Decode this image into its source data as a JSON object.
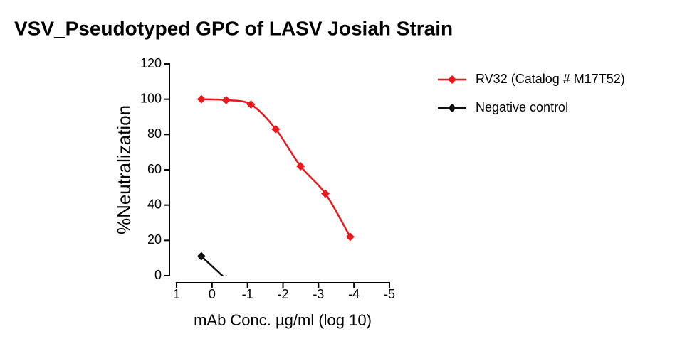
{
  "chart_data": {
    "type": "line",
    "title": "VSV_Pseudotyped GPC of LASV Josiah Strain",
    "x_label": "mAb Conc. µg/ml (log 10)",
    "y_label": "%Neutralization",
    "xlim": [
      1,
      -5
    ],
    "xticks": [
      1,
      0,
      -1,
      -2,
      -3,
      -4,
      -5
    ],
    "ylim": [
      0,
      120
    ],
    "yticks": [
      0,
      20,
      40,
      60,
      80,
      100,
      120
    ],
    "legend": "top-right",
    "series": [
      {
        "name": "RV32 (Catalog # M17T52)",
        "color": "#e8191c",
        "x": [
          0.301,
          -0.398,
          -1.097,
          -1.796,
          -2.495,
          -3.194,
          -3.893
        ],
        "values": [
          100,
          99.5,
          97,
          83,
          62,
          46.5,
          22
        ]
      },
      {
        "name": "Negative control",
        "color": "#111111",
        "x": [
          0.301,
          -0.398
        ],
        "values": [
          11,
          -2
        ]
      }
    ]
  }
}
